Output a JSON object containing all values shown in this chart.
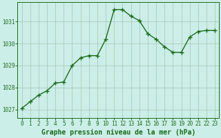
{
  "x": [
    0,
    1,
    2,
    3,
    4,
    5,
    6,
    7,
    8,
    9,
    10,
    11,
    12,
    13,
    14,
    15,
    16,
    17,
    18,
    19,
    20,
    21,
    22,
    23
  ],
  "y": [
    1027.05,
    1027.35,
    1027.65,
    1027.85,
    1028.2,
    1028.25,
    1029.0,
    1029.35,
    1029.45,
    1029.45,
    1030.2,
    1031.55,
    1031.55,
    1031.25,
    1031.05,
    1030.45,
    1030.2,
    1029.85,
    1029.6,
    1029.6,
    1030.3,
    1030.55,
    1030.6,
    1030.6
  ],
  "line_color": "#1a6b1a",
  "marker": "+",
  "marker_size": 4,
  "bg_color": "#cceee8",
  "grid_color": "#aaccbb",
  "xlabel": "Graphe pression niveau de la mer (hPa)",
  "xlabel_fontsize": 7,
  "ytick_labels": [
    "1027",
    "1028",
    "1029",
    "1030",
    "1031"
  ],
  "ytick_values": [
    1027,
    1028,
    1029,
    1030,
    1031
  ],
  "ylim": [
    1026.6,
    1031.9
  ],
  "xlim": [
    -0.5,
    23.5
  ],
  "xtick_labels": [
    "0",
    "1",
    "2",
    "3",
    "4",
    "5",
    "6",
    "7",
    "8",
    "9",
    "10",
    "11",
    "12",
    "13",
    "14",
    "15",
    "16",
    "17",
    "18",
    "19",
    "20",
    "21",
    "22",
    "23"
  ],
  "tick_fontsize": 5.5,
  "linewidth": 1.0
}
